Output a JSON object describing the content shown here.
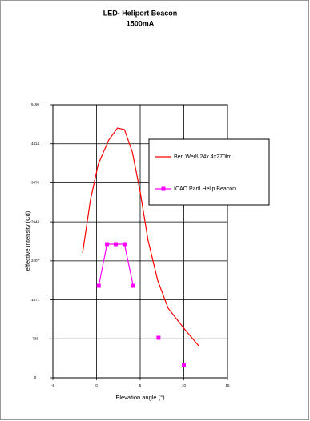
{
  "chart_data": {
    "type": "line",
    "title": "LED- Heliport Beacon",
    "subtitle": "1500mA",
    "x_label": "Elevation angle (°)",
    "y_label": "effective Intensity (Cd)",
    "xlim": [
      -5,
      15
    ],
    "xticks": [
      -5,
      0,
      5,
      10,
      15
    ],
    "ylim": [
      0,
      5150
    ],
    "yticks": [
      0,
      736,
      1471,
      2207,
      2943,
      3678,
      4414,
      5150
    ],
    "grid": true,
    "legend": "right",
    "series": [
      {
        "name": "Ber. Weiß 24x 4x270lm",
        "color": "#ff0000",
        "marker": false,
        "x": [
          -1.6,
          -0.7,
          0.2,
          1.4,
          2.4,
          3.2,
          4.1,
          5.0,
          5.9,
          7.0,
          8.2,
          10.0,
          11.7
        ],
        "values": [
          2356,
          3353,
          4032,
          4485,
          4712,
          4682,
          4259,
          3504,
          2598,
          1842,
          1314,
          936,
          604
        ]
      },
      {
        "name": "ICAO Partl Helip.Beacon.",
        "color": "#ff00ff",
        "marker": true,
        "x": [
          0.25,
          1.2,
          2.2,
          3.2,
          4.2,
          5.5,
          7.1,
          8.5,
          10.0
        ],
        "values": [
          1737,
          2522,
          2522,
          2522,
          1737,
          null,
          755,
          null,
          242
        ]
      }
    ]
  }
}
